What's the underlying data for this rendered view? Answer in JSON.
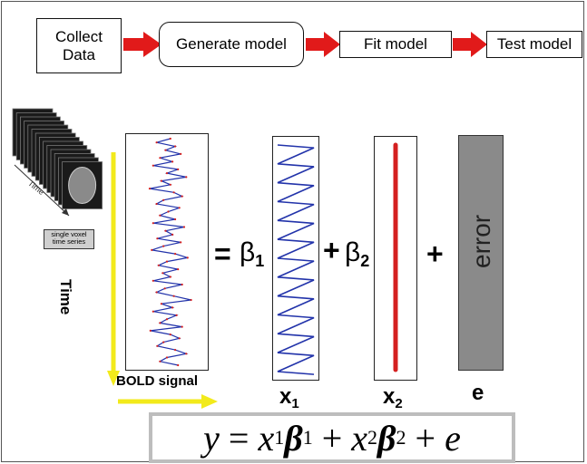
{
  "pipeline": {
    "steps": [
      "Collect\nData",
      "Generate model",
      "Fit model",
      "Test model"
    ]
  },
  "labels": {
    "time_slanted": "Time",
    "single_voxel": "single voxel\ntime series",
    "time_axis": "Time",
    "bold_signal": "BOLD signal",
    "equals": "=",
    "beta1": "β",
    "beta1_sub": "1",
    "plus1": "+",
    "beta2": "β",
    "beta2_sub": "2",
    "plus2": "+",
    "x1": "x",
    "x1_sub": "1",
    "x2": "x",
    "x2_sub": "2",
    "e": "e",
    "error": "error"
  },
  "equation": {
    "y": "y",
    "eq": " = ",
    "x1": "x",
    "x1_sub": "1",
    "beta1": "β",
    "beta1_sub": "1",
    "plus1": " + ",
    "x2": "x",
    "x2_sub": "2",
    "beta2": "β",
    "beta2_sub": "2",
    "plus2": " + ",
    "e": "e"
  },
  "colors": {
    "arrow_red": "#e11a1a",
    "signal_blue": "#2233aa",
    "signal_red": "#d42020",
    "yellow": "#f2ea1b",
    "error_gray": "#8a8a8a"
  }
}
